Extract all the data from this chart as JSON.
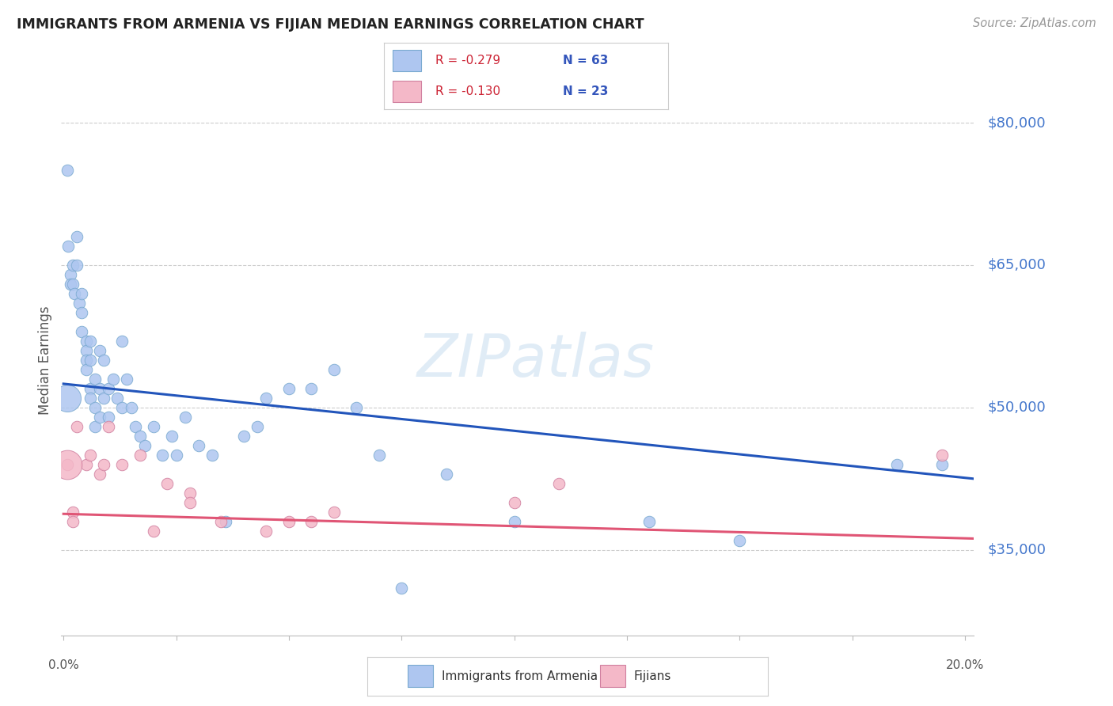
{
  "title": "IMMIGRANTS FROM ARMENIA VS FIJIAN MEDIAN EARNINGS CORRELATION CHART",
  "source": "Source: ZipAtlas.com",
  "ylabel": "Median Earnings",
  "watermark": "ZIPatlas",
  "legend_entries": [
    {
      "r_label": "R = -0.279",
      "n_label": "N = 63",
      "fc": "#aec6f0",
      "ec": "#7aaad0"
    },
    {
      "r_label": "R = -0.130",
      "n_label": "N = 23",
      "fc": "#f4b8c8",
      "ec": "#d080a0"
    }
  ],
  "legend_bottom": [
    {
      "label": "Immigrants from Armenia",
      "fc": "#aec6f0",
      "ec": "#7aaad0"
    },
    {
      "label": "Fijians",
      "fc": "#f4b8c8",
      "ec": "#d080a0"
    }
  ],
  "yticks": [
    35000,
    50000,
    65000,
    80000
  ],
  "ytick_labels": [
    "$35,000",
    "$50,000",
    "$65,000",
    "$80,000"
  ],
  "ymin": 26000,
  "ymax": 84000,
  "xmin": -0.0005,
  "xmax": 0.202,
  "blue_line_x": [
    0.0,
    0.202
  ],
  "blue_line_y": [
    52500,
    42500
  ],
  "pink_line_x": [
    0.0,
    0.202
  ],
  "pink_line_y": [
    38800,
    36200
  ],
  "blue_line_color": "#2255bb",
  "pink_line_color": "#e05575",
  "blue_fc": "#aec6f0",
  "pink_fc": "#f4b8c8",
  "blue_ec": "#7aaad0",
  "pink_ec": "#d080a0",
  "title_color": "#222222",
  "source_color": "#999999",
  "ytick_color": "#4477cc",
  "grid_color": "#cccccc",
  "bg_color": "#ffffff",
  "blue_pts": [
    [
      0.0008,
      75000
    ],
    [
      0.001,
      67000
    ],
    [
      0.0015,
      64000
    ],
    [
      0.0015,
      63000
    ],
    [
      0.002,
      65000
    ],
    [
      0.002,
      63000
    ],
    [
      0.0025,
      62000
    ],
    [
      0.003,
      68000
    ],
    [
      0.003,
      65000
    ],
    [
      0.0035,
      61000
    ],
    [
      0.004,
      62000
    ],
    [
      0.004,
      60000
    ],
    [
      0.004,
      58000
    ],
    [
      0.005,
      57000
    ],
    [
      0.005,
      56000
    ],
    [
      0.005,
      55000
    ],
    [
      0.005,
      54000
    ],
    [
      0.006,
      57000
    ],
    [
      0.006,
      55000
    ],
    [
      0.006,
      52000
    ],
    [
      0.006,
      51000
    ],
    [
      0.007,
      53000
    ],
    [
      0.007,
      50000
    ],
    [
      0.007,
      48000
    ],
    [
      0.008,
      56000
    ],
    [
      0.008,
      52000
    ],
    [
      0.008,
      49000
    ],
    [
      0.009,
      55000
    ],
    [
      0.009,
      51000
    ],
    [
      0.01,
      52000
    ],
    [
      0.01,
      49000
    ],
    [
      0.011,
      53000
    ],
    [
      0.012,
      51000
    ],
    [
      0.013,
      57000
    ],
    [
      0.013,
      50000
    ],
    [
      0.014,
      53000
    ],
    [
      0.015,
      50000
    ],
    [
      0.016,
      48000
    ],
    [
      0.017,
      47000
    ],
    [
      0.018,
      46000
    ],
    [
      0.02,
      48000
    ],
    [
      0.022,
      45000
    ],
    [
      0.024,
      47000
    ],
    [
      0.025,
      45000
    ],
    [
      0.027,
      49000
    ],
    [
      0.03,
      46000
    ],
    [
      0.033,
      45000
    ],
    [
      0.036,
      38000
    ],
    [
      0.04,
      47000
    ],
    [
      0.043,
      48000
    ],
    [
      0.045,
      51000
    ],
    [
      0.05,
      52000
    ],
    [
      0.055,
      52000
    ],
    [
      0.06,
      54000
    ],
    [
      0.065,
      50000
    ],
    [
      0.07,
      45000
    ],
    [
      0.075,
      31000
    ],
    [
      0.085,
      43000
    ],
    [
      0.1,
      38000
    ],
    [
      0.13,
      38000
    ],
    [
      0.15,
      36000
    ],
    [
      0.185,
      44000
    ],
    [
      0.195,
      44000
    ]
  ],
  "pink_pts": [
    [
      0.0008,
      44000
    ],
    [
      0.002,
      39000
    ],
    [
      0.002,
      38000
    ],
    [
      0.003,
      48000
    ],
    [
      0.005,
      44000
    ],
    [
      0.006,
      45000
    ],
    [
      0.008,
      43000
    ],
    [
      0.009,
      44000
    ],
    [
      0.01,
      48000
    ],
    [
      0.013,
      44000
    ],
    [
      0.017,
      45000
    ],
    [
      0.02,
      37000
    ],
    [
      0.023,
      42000
    ],
    [
      0.028,
      41000
    ],
    [
      0.028,
      40000
    ],
    [
      0.035,
      38000
    ],
    [
      0.045,
      37000
    ],
    [
      0.05,
      38000
    ],
    [
      0.055,
      38000
    ],
    [
      0.06,
      39000
    ],
    [
      0.1,
      40000
    ],
    [
      0.11,
      42000
    ],
    [
      0.195,
      45000
    ]
  ],
  "blue_large_size": 600,
  "blue_large_pt": [
    0.0008,
    51000
  ],
  "pink_large_size": 700,
  "pink_large_pt": [
    0.0008,
    44000
  ],
  "dot_size": 110
}
